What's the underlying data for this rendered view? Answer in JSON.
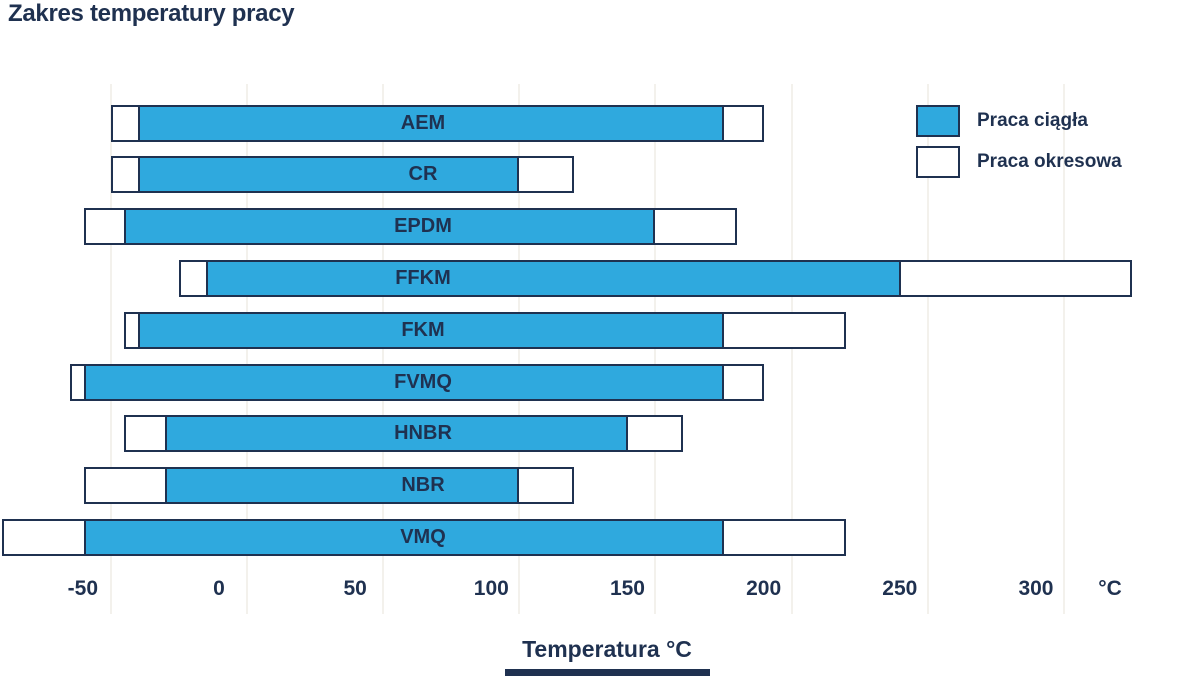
{
  "page": {
    "title": "Zakres temperatury pracy"
  },
  "colors": {
    "navy": "#1F3150",
    "blue": "#2FA9DE",
    "white": "#FFFFFF",
    "grid": "#F3F1EC"
  },
  "legend": {
    "items": [
      {
        "label": "Praca ciągła",
        "swatch": "blue"
      },
      {
        "label": "Praca okresowa",
        "swatch": "white"
      }
    ]
  },
  "x_axis": {
    "title": "Temperatura °C",
    "unit": "°C",
    "tick_labels": [
      "-50",
      "0",
      "50",
      "100",
      "150",
      "200",
      "250",
      "300"
    ]
  },
  "chart_data": {
    "type": "bar",
    "orientation": "horizontal-range",
    "title": "Zakres temperatury pracy",
    "xlabel": "Temperatura °C",
    "x_ticks": [
      -50,
      0,
      50,
      100,
      150,
      200,
      250,
      300
    ],
    "x_range_drawn": [
      -90,
      350
    ],
    "grid": "vertical-faint",
    "legend_position": "top-right",
    "legend_entries": [
      "Praca ciągła",
      "Praca okresowa"
    ],
    "note": "Each material bar: outer white bar = Praca okresowa (intermittent) temperature range [°C], inner blue bar = Praca ciągła (continuous) range [°C].",
    "materials": [
      {
        "name": "AEM",
        "periodic": [
          -50,
          190
        ],
        "continuous": [
          -40,
          175
        ]
      },
      {
        "name": "CR",
        "periodic": [
          -50,
          120
        ],
        "continuous": [
          -40,
          100
        ]
      },
      {
        "name": "EPDM",
        "periodic": [
          -60,
          180
        ],
        "continuous": [
          -45,
          150
        ]
      },
      {
        "name": "FFKM",
        "periodic": [
          -25,
          325
        ],
        "continuous": [
          -15,
          240
        ]
      },
      {
        "name": "FKM",
        "periodic": [
          -45,
          220
        ],
        "continuous": [
          -40,
          175
        ]
      },
      {
        "name": "FVMQ",
        "periodic": [
          -65,
          190
        ],
        "continuous": [
          -60,
          175
        ]
      },
      {
        "name": "HNBR",
        "periodic": [
          -45,
          160
        ],
        "continuous": [
          -30,
          140
        ]
      },
      {
        "name": "NBR",
        "periodic": [
          -60,
          120
        ],
        "continuous": [
          -30,
          100
        ]
      },
      {
        "name": "VMQ",
        "periodic": [
          -90,
          220
        ],
        "continuous": [
          -60,
          175
        ]
      }
    ]
  }
}
